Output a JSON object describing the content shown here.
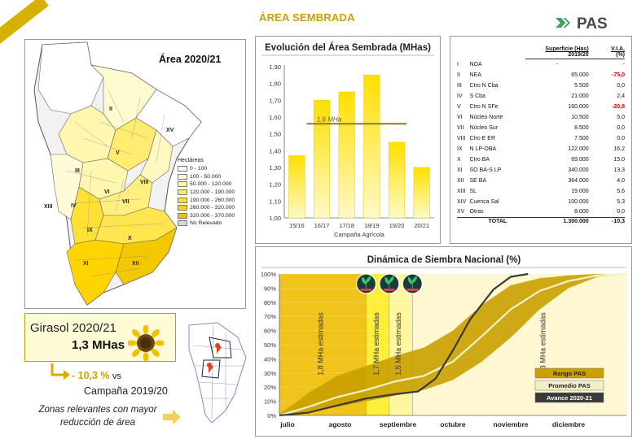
{
  "header": {
    "title": "ÁREA SEMBRADA",
    "logo_text": "PAS"
  },
  "map": {
    "title": "Área 2020/21",
    "legend_title": "Hectáreas",
    "legend": [
      {
        "label": "0 - 100",
        "color": "#ffffff"
      },
      {
        "label": "100 - 50.000",
        "color": "#fffde0"
      },
      {
        "label": "50.000 - 120.000",
        "color": "#fff6a8"
      },
      {
        "label": "120.000 - 190.000",
        "color": "#ffeb5c"
      },
      {
        "label": "190.000 - 260.000",
        "color": "#ffe02a"
      },
      {
        "label": "260.000 - 320.000",
        "color": "#ffd400"
      },
      {
        "label": "320.000 - 370.000",
        "color": "#f0c000"
      },
      {
        "label": "No Relevado",
        "color": "#d8d8d8"
      }
    ],
    "region_labels": [
      "II",
      "XV",
      "III",
      "V",
      "VIII",
      "VI",
      "XIII",
      "IV",
      "VII",
      "IX",
      "X",
      "XI",
      "XII"
    ]
  },
  "girasol": {
    "title": "Girasol 2020/21",
    "value": "1,3 MHas",
    "change": "- 10,3 %",
    "vs": "vs",
    "campaign": "Campaña 2019/20",
    "zones_text": "Zonas relevantes con mayor reducción de área"
  },
  "table": {
    "head_col1": "Superficie (Has)",
    "head_col1_sub": "2019/20",
    "head_col2": "V.I.A.",
    "head_col2_sub": "(%)",
    "rows": [
      {
        "num": "I",
        "name": "NOA",
        "sup": "-",
        "via": "-",
        "neg": false
      },
      {
        "num": "II",
        "name": "NEA",
        "sup": "65.000",
        "via": "-75,0",
        "neg": true
      },
      {
        "num": "III",
        "name": "Ctro N Cba",
        "sup": "5.500",
        "via": "0,0",
        "neg": false
      },
      {
        "num": "IV",
        "name": "S Cba",
        "sup": "21.000",
        "via": "2,4",
        "neg": false
      },
      {
        "num": "V",
        "name": "Ctro N SFe",
        "sup": "160.000",
        "via": "-20,8",
        "neg": true
      },
      {
        "num": "VI",
        "name": "Núcleo Norte",
        "sup": "10.500",
        "via": "5,0",
        "neg": false
      },
      {
        "num": "VII",
        "name": "Núcleo Sur",
        "sup": "8.500",
        "via": "0,0",
        "neg": false
      },
      {
        "num": "VIII",
        "name": "Ctro E ER",
        "sup": "7.500",
        "via": "0,0",
        "neg": false
      },
      {
        "num": "IX",
        "name": "N LP-OBA",
        "sup": "122.000",
        "via": "16,2",
        "neg": false
      },
      {
        "num": "X",
        "name": "Ctro BA",
        "sup": "69.000",
        "via": "15,0",
        "neg": false
      },
      {
        "num": "XI",
        "name": "SO BA-S LP",
        "sup": "340.000",
        "via": "13,3",
        "neg": false
      },
      {
        "num": "XII",
        "name": "SE BA",
        "sup": "364.000",
        "via": "4,0",
        "neg": false
      },
      {
        "num": "XIII",
        "name": "SL",
        "sup": "19.000",
        "via": "5,6",
        "neg": false
      },
      {
        "num": "XIV",
        "name": "Cuenca Sal",
        "sup": "100.000",
        "via": "5,3",
        "neg": false
      },
      {
        "num": "XV",
        "name": "Otras",
        "sup": "8.000",
        "via": "0,0",
        "neg": false
      }
    ],
    "total_label": "TOTAL",
    "total_sup": "1.300.000",
    "total_via": "-10,3"
  },
  "chart_data": [
    {
      "type": "bar",
      "title": "Evolución del Área Sembrada (MHas)",
      "xlabel": "Campaña Agrícola",
      "ylabel": "",
      "categories": [
        "15/16",
        "16/17",
        "17/18",
        "18/19",
        "19/20",
        "20/21"
      ],
      "values": [
        1.37,
        1.7,
        1.75,
        1.85,
        1.45,
        1.3
      ],
      "ylim": [
        1.0,
        1.9
      ],
      "yticks": [
        "1,00",
        "1,10",
        "1,20",
        "1,30",
        "1,40",
        "1,50",
        "1,60",
        "1,70",
        "1,80",
        "1,90"
      ],
      "reference_line": {
        "value": 1.56,
        "label": "1,6 MHa"
      },
      "bar_color": "#ffd800"
    },
    {
      "type": "area",
      "title": "Dinámica de Siembra Nacional (%)",
      "x_months": [
        "julio",
        "agosto",
        "septiembre",
        "octubre",
        "noviembre",
        "diciembre"
      ],
      "yticks": [
        "0%",
        "10%",
        "20%",
        "30%",
        "40%",
        "50%",
        "60%",
        "70%",
        "80%",
        "90%",
        "100%"
      ],
      "ylim": [
        0,
        100
      ],
      "series": [
        {
          "name": "Rango PAS",
          "kind": "band",
          "upper": [
            [
              0,
              1
            ],
            [
              0.25,
              8
            ],
            [
              0.5,
              16
            ],
            [
              1,
              28
            ],
            [
              1.5,
              35
            ],
            [
              2,
              42
            ],
            [
              2.5,
              48
            ],
            [
              3,
              60
            ],
            [
              3.5,
              78
            ],
            [
              4,
              92
            ],
            [
              4.5,
              97
            ],
            [
              5,
              99
            ],
            [
              5.5,
              100
            ]
          ],
          "lower": [
            [
              0,
              0
            ],
            [
              0.5,
              3
            ],
            [
              1,
              6
            ],
            [
              1.5,
              10
            ],
            [
              2,
              14
            ],
            [
              2.5,
              18
            ],
            [
              3,
              25
            ],
            [
              3.5,
              38
            ],
            [
              4,
              55
            ],
            [
              4.5,
              75
            ],
            [
              5,
              90
            ],
            [
              5.5,
              98
            ],
            [
              6,
              100
            ]
          ]
        },
        {
          "name": "Promedio PAS",
          "kind": "line",
          "points": [
            [
              0,
              0
            ],
            [
              0.5,
              6
            ],
            [
              1,
              13
            ],
            [
              1.5,
              18
            ],
            [
              2,
              24
            ],
            [
              2.5,
              28
            ],
            [
              3,
              38
            ],
            [
              3.5,
              56
            ],
            [
              4,
              75
            ],
            [
              4.5,
              88
            ],
            [
              5,
              95
            ],
            [
              5.5,
              99
            ],
            [
              6,
              100
            ]
          ]
        },
        {
          "name": "Avance 2020/21",
          "kind": "line",
          "points": [
            [
              0,
              0
            ],
            [
              0.5,
              2
            ],
            [
              1,
              7
            ],
            [
              1.5,
              12
            ],
            [
              2,
              15
            ],
            [
              2.4,
              17
            ],
            [
              2.7,
              26
            ],
            [
              3,
              46
            ],
            [
              3.3,
              68
            ],
            [
              3.7,
              89
            ],
            [
              4,
              98
            ],
            [
              4.3,
              100
            ]
          ]
        }
      ],
      "annotations": [
        "1,8 MHa estimadas",
        "1,7 MHa estimadas",
        "1,5 MHa estimadas",
        "1,3 MHa estimadas"
      ],
      "legend": [
        "Rango PAS",
        "Promedio PAS",
        "Avance 2020-21"
      ]
    }
  ]
}
